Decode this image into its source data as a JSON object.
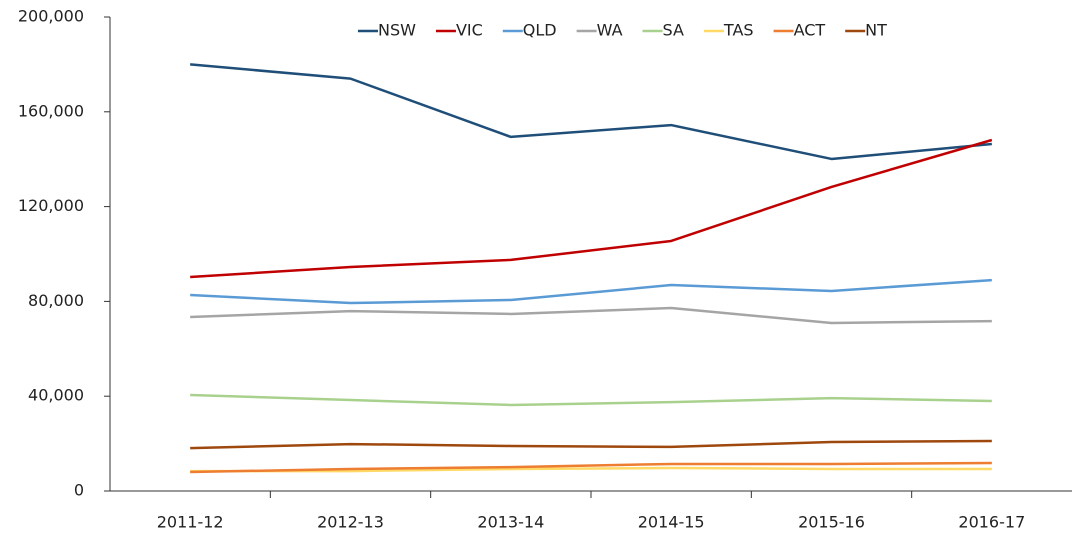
{
  "chart_data": {
    "type": "line",
    "categories": [
      "2011-12",
      "2012-13",
      "2013-14",
      "2014-15",
      "2015-16",
      "2016-17"
    ],
    "series": [
      {
        "name": "NSW",
        "color": "#1f4e79",
        "values": [
          180000,
          174000,
          149400,
          154400,
          140100,
          146400
        ]
      },
      {
        "name": "VIC",
        "color": "#c00000",
        "values": [
          90300,
          94500,
          97500,
          105500,
          128300,
          148100
        ]
      },
      {
        "name": "QLD",
        "color": "#5b9bd5",
        "values": [
          82700,
          79300,
          80600,
          86900,
          84400,
          89000
        ]
      },
      {
        "name": "WA",
        "color": "#a5a5a5",
        "values": [
          73400,
          75900,
          74700,
          77200,
          70900,
          71700
        ]
      },
      {
        "name": "SA",
        "color": "#a9d18e",
        "values": [
          40500,
          38400,
          36300,
          37500,
          39200,
          38000
        ]
      },
      {
        "name": "TAS",
        "color": "#ffd966",
        "values": [
          8400,
          8400,
          9300,
          9700,
          9300,
          9300
        ]
      },
      {
        "name": "ACT",
        "color": "#ed7d31",
        "values": [
          8000,
          9300,
          10100,
          11400,
          11400,
          11800
        ]
      },
      {
        "name": "NT",
        "color": "#9e480e",
        "values": [
          18100,
          19800,
          19000,
          18600,
          20700,
          21100
        ]
      }
    ],
    "ylim": [
      0,
      200000
    ],
    "yticks": [
      0,
      {
        "value": 40000,
        "label": "40,000"
      },
      {
        "value": 80000,
        "label": "80,000"
      },
      {
        "value": 120000,
        "label": "120,000"
      },
      {
        "value": 160000,
        "label": "160,000"
      },
      {
        "value": 200000,
        "label": "200,000"
      }
    ],
    "grid": false,
    "legend": "top"
  }
}
